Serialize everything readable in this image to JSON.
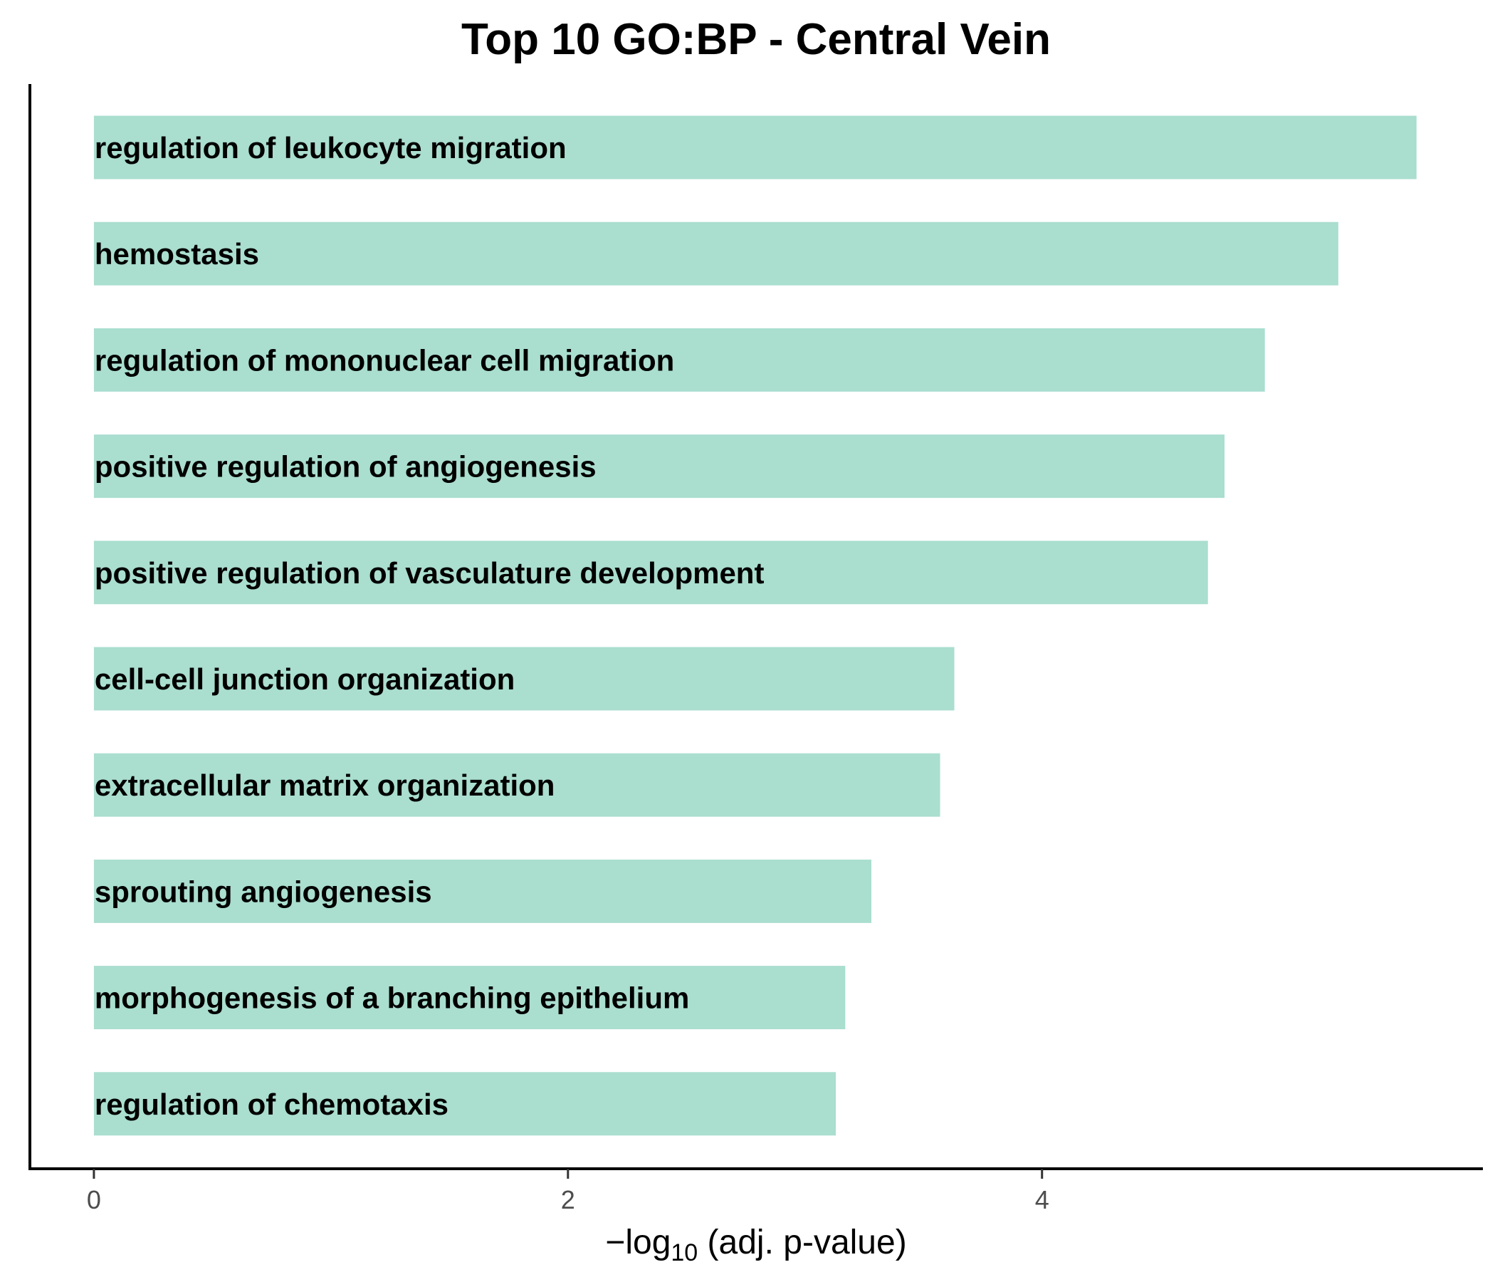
{
  "chart_data": {
    "type": "bar",
    "orientation": "horizontal",
    "title": "Top 10 GO:BP - Central Vein",
    "xlabel_prefix": "−log",
    "xlabel_subscript": "10",
    "xlabel_suffix": " (adj. p-value)",
    "ylabel": "",
    "categories": [
      "regulation of leukocyte migration",
      "hemostasis",
      "regulation of mononuclear cell migration",
      "positive regulation of angiogenesis",
      "positive regulation of vasculature development",
      "cell-cell junction organization",
      "extracellular matrix organization",
      "sprouting angiogenesis",
      "morphogenesis of a branching epithelium",
      "regulation of chemotaxis"
    ],
    "values": [
      5.58,
      5.25,
      4.94,
      4.77,
      4.7,
      3.63,
      3.57,
      3.28,
      3.17,
      3.13
    ],
    "xlim": [
      -0.27,
      5.86
    ],
    "xticks": [
      0,
      2,
      4
    ],
    "xtick_labels": [
      "0",
      "2",
      "4"
    ],
    "bar_color": "#aadecf",
    "grid": false
  }
}
